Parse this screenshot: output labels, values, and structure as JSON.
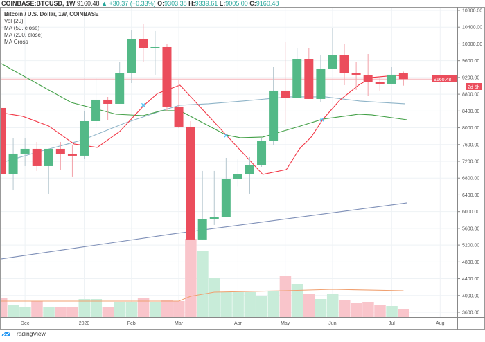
{
  "header": {
    "symbol": "COINBASE:BTCUSD, 1W",
    "last": "9160.48",
    "change": "+30.37 (+0.33%)",
    "o_label": "O:",
    "o": "9303.38",
    "h_label": "H:",
    "h": "9339.61",
    "l_label": "L:",
    "l": "9005.00",
    "c_label": "C:",
    "c": "9160.48"
  },
  "legend": {
    "title": "Bitcoin / U.S. Dollar, 1W, COINBASE",
    "items": [
      "Vol (20)",
      "MA (50, close)",
      "MA (200, close)",
      "MA Cross"
    ]
  },
  "price_label": {
    "value": "9160.48",
    "countdown": "2d 5h"
  },
  "branding": "TradingView",
  "colors": {
    "up": "#53b987",
    "down": "#eb4d5c",
    "ma_red": "#f23645",
    "ma_green": "#43a047",
    "ma_light": "#8fb4c8",
    "ma_dark": "#7e8fb7",
    "vol_ma": "#f0a070",
    "cross": "#4fc3f7"
  },
  "chart_data": {
    "type": "candlestick",
    "ylim": [
      3600,
      10800
    ],
    "yticks": [
      "10800.00",
      "10400.00",
      "10000.00",
      "9600.00",
      "9200.00",
      "8800.00",
      "8400.00",
      "8000.00",
      "7600.00",
      "7200.00",
      "6800.00",
      "6400.00",
      "6000.00",
      "5600.00",
      "5200.00",
      "4800.00",
      "4400.00",
      "4000.00",
      "3600.00"
    ],
    "ytick_values": [
      10800,
      10400,
      10000,
      9600,
      9200,
      8800,
      8400,
      8000,
      7600,
      7200,
      6800,
      6400,
      6000,
      5600,
      5200,
      4800,
      4400,
      4000,
      3600
    ],
    "xticks": [
      {
        "label": "Dec",
        "index": 2
      },
      {
        "label": "2020",
        "index": 7
      },
      {
        "label": "Feb",
        "index": 11
      },
      {
        "label": "Mar",
        "index": 15
      },
      {
        "label": "Apr",
        "index": 20
      },
      {
        "label": "May",
        "index": 24
      },
      {
        "label": "Jun",
        "index": 28
      },
      {
        "label": "Jul",
        "index": 33
      },
      {
        "label": "Aug",
        "index": 37.1
      }
    ],
    "candles": [
      [
        8472,
        6887,
        8472,
        6887
      ],
      [
        6887,
        7382,
        7746,
        6507
      ],
      [
        7382,
        7498,
        7746,
        7085
      ],
      [
        7498,
        7085,
        7663,
        6970
      ],
      [
        7085,
        7498,
        7498,
        6425
      ],
      [
        7498,
        7366,
        7663,
        7002
      ],
      [
        7366,
        7333,
        7581,
        6838
      ],
      [
        7333,
        8158,
        8406,
        7250
      ],
      [
        8158,
        8670,
        9182,
        8026
      ],
      [
        8670,
        8571,
        8736,
        8191
      ],
      [
        8571,
        9298,
        9562,
        8571
      ],
      [
        9298,
        10123,
        10321,
        9066
      ],
      [
        10123,
        9892,
        10486,
        9562
      ],
      [
        9892,
        9925,
        10305,
        9265
      ],
      [
        9925,
        8505,
        9991,
        8406
      ],
      [
        8505,
        8026,
        9149,
        7993
      ],
      [
        8026,
        5335,
        8158,
        5335
      ],
      [
        5335,
        5814,
        6970,
        5335
      ],
      [
        5814,
        5864,
        6970,
        5682
      ],
      [
        5864,
        6772,
        7283,
        5864
      ],
      [
        6772,
        6887,
        7250,
        6600
      ],
      [
        6887,
        7102,
        7300,
        6425
      ],
      [
        7102,
        7680,
        7762,
        7069
      ],
      [
        7680,
        8885,
        9446,
        7581
      ],
      [
        8885,
        8703,
        10057,
        8076
      ],
      [
        8703,
        9644,
        9908,
        8703
      ],
      [
        9644,
        8687,
        9908,
        8687
      ],
      [
        8687,
        9413,
        9727,
        8604
      ],
      [
        9413,
        9727,
        10387,
        9397
      ],
      [
        9727,
        9298,
        9991,
        9017
      ],
      [
        9298,
        9265,
        9578,
        8901
      ],
      [
        9248,
        9099,
        9760,
        8769
      ],
      [
        9083,
        9066,
        9232,
        8885
      ],
      [
        9050,
        9265,
        9446,
        9050
      ],
      [
        9303.38,
        9160.48,
        9339.61,
        9005
      ]
    ],
    "volume": [
      28,
      18,
      14,
      23,
      14,
      14,
      15,
      26,
      26,
      14,
      22,
      22,
      28,
      22,
      25,
      23,
      113,
      95,
      56,
      36,
      36,
      36,
      30,
      38,
      60,
      48,
      34,
      26,
      33,
      24,
      21,
      22,
      18,
      16,
      12
    ],
    "volume_ma": [
      [
        0,
        23
      ],
      [
        15,
        23
      ],
      [
        16,
        30
      ],
      [
        18,
        36
      ],
      [
        24,
        38
      ],
      [
        28,
        40
      ],
      [
        34,
        38
      ]
    ],
    "ma_red": [
      [
        0,
        8357
      ],
      [
        1.8,
        8274
      ],
      [
        4,
        8043
      ],
      [
        6.15,
        7614
      ],
      [
        8.1,
        7531
      ],
      [
        10,
        7911
      ],
      [
        12.07,
        8538
      ],
      [
        13.2,
        8819
      ],
      [
        15.1,
        9017
      ],
      [
        22.1,
        6887
      ],
      [
        24.1,
        7003
      ],
      [
        25.2,
        7498
      ],
      [
        26.2,
        7779
      ],
      [
        27.2,
        8208
      ],
      [
        28.6,
        8654
      ],
      [
        30.2,
        9017
      ],
      [
        31.3,
        9199
      ],
      [
        33.3,
        9248
      ],
      [
        34.3,
        9232
      ]
    ],
    "ma_green": [
      [
        0,
        9529
      ],
      [
        5.9,
        8604
      ],
      [
        9.7,
        8323
      ],
      [
        12,
        8290
      ],
      [
        13.5,
        8406
      ],
      [
        15.1,
        8406
      ],
      [
        19,
        7828
      ],
      [
        20.2,
        7762
      ],
      [
        22.1,
        7779
      ],
      [
        25.1,
        8026
      ],
      [
        27.2,
        8208
      ],
      [
        30.2,
        8323
      ],
      [
        31.3,
        8307
      ],
      [
        34.3,
        8191
      ]
    ],
    "ma_light": [
      [
        0,
        7168
      ],
      [
        3.4,
        7448
      ],
      [
        6.9,
        7713
      ],
      [
        10.4,
        8109
      ],
      [
        13.9,
        8439
      ],
      [
        15.1,
        8538
      ],
      [
        17.5,
        8571
      ],
      [
        20.4,
        8637
      ],
      [
        24.3,
        8736
      ],
      [
        27.4,
        8736
      ],
      [
        30.3,
        8637
      ],
      [
        32.1,
        8604
      ],
      [
        34.1,
        8571
      ]
    ],
    "ma_dark": [
      [
        0,
        4873
      ],
      [
        14.5,
        5467
      ],
      [
        34.3,
        6210
      ]
    ],
    "crosses": [
      [
        12,
        8538
      ],
      [
        19,
        7812
      ],
      [
        27.1,
        8191
      ]
    ],
    "last_price": 9160.48
  }
}
